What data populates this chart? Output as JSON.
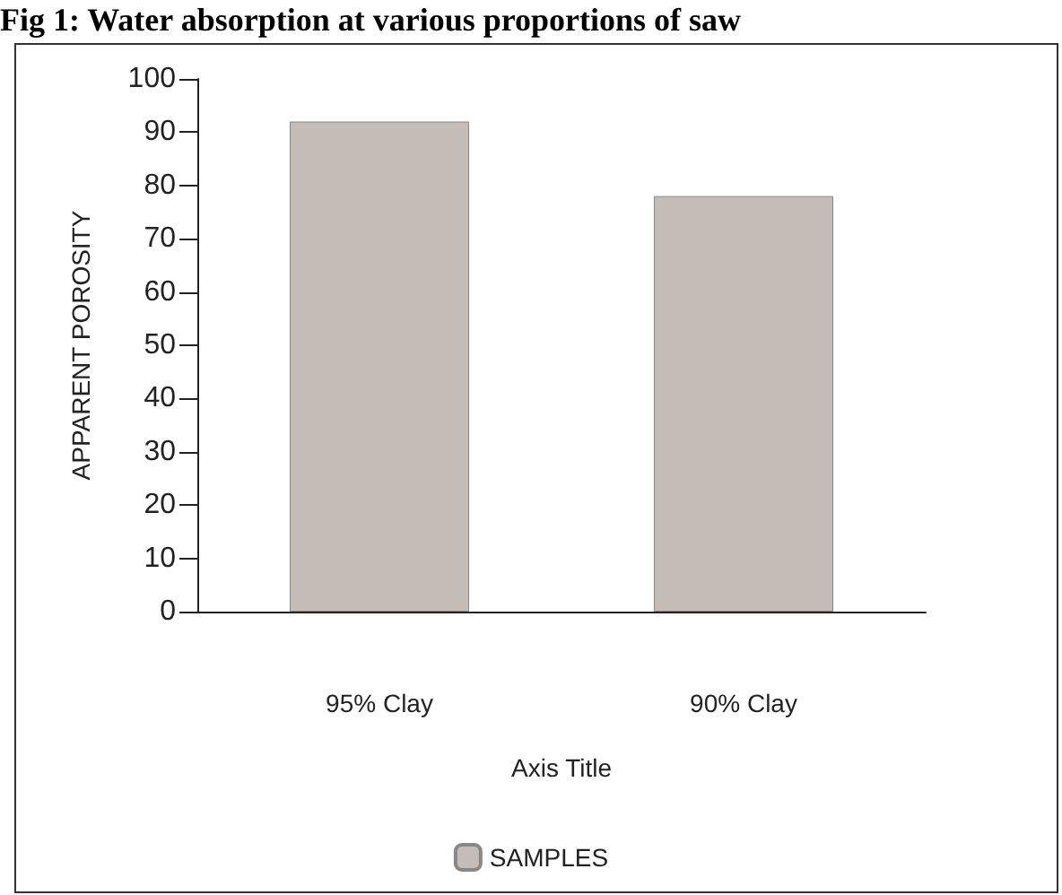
{
  "chart_data": {
    "type": "bar",
    "title": "Fig 1: Water absorption at various proportions of saw",
    "xlabel": "Axis Title",
    "ylabel": "APPARENT POROSITY",
    "categories": [
      "95% Clay",
      "90% Clay"
    ],
    "series": [
      {
        "name": "SAMPLES",
        "color": "#c4bcb7",
        "values": [
          92,
          78
        ]
      }
    ],
    "ylim": [
      0,
      100
    ],
    "yticks": [
      0,
      10,
      20,
      30,
      40,
      50,
      60,
      70,
      80,
      90,
      100
    ],
    "grid": false,
    "legend": "bottom"
  }
}
